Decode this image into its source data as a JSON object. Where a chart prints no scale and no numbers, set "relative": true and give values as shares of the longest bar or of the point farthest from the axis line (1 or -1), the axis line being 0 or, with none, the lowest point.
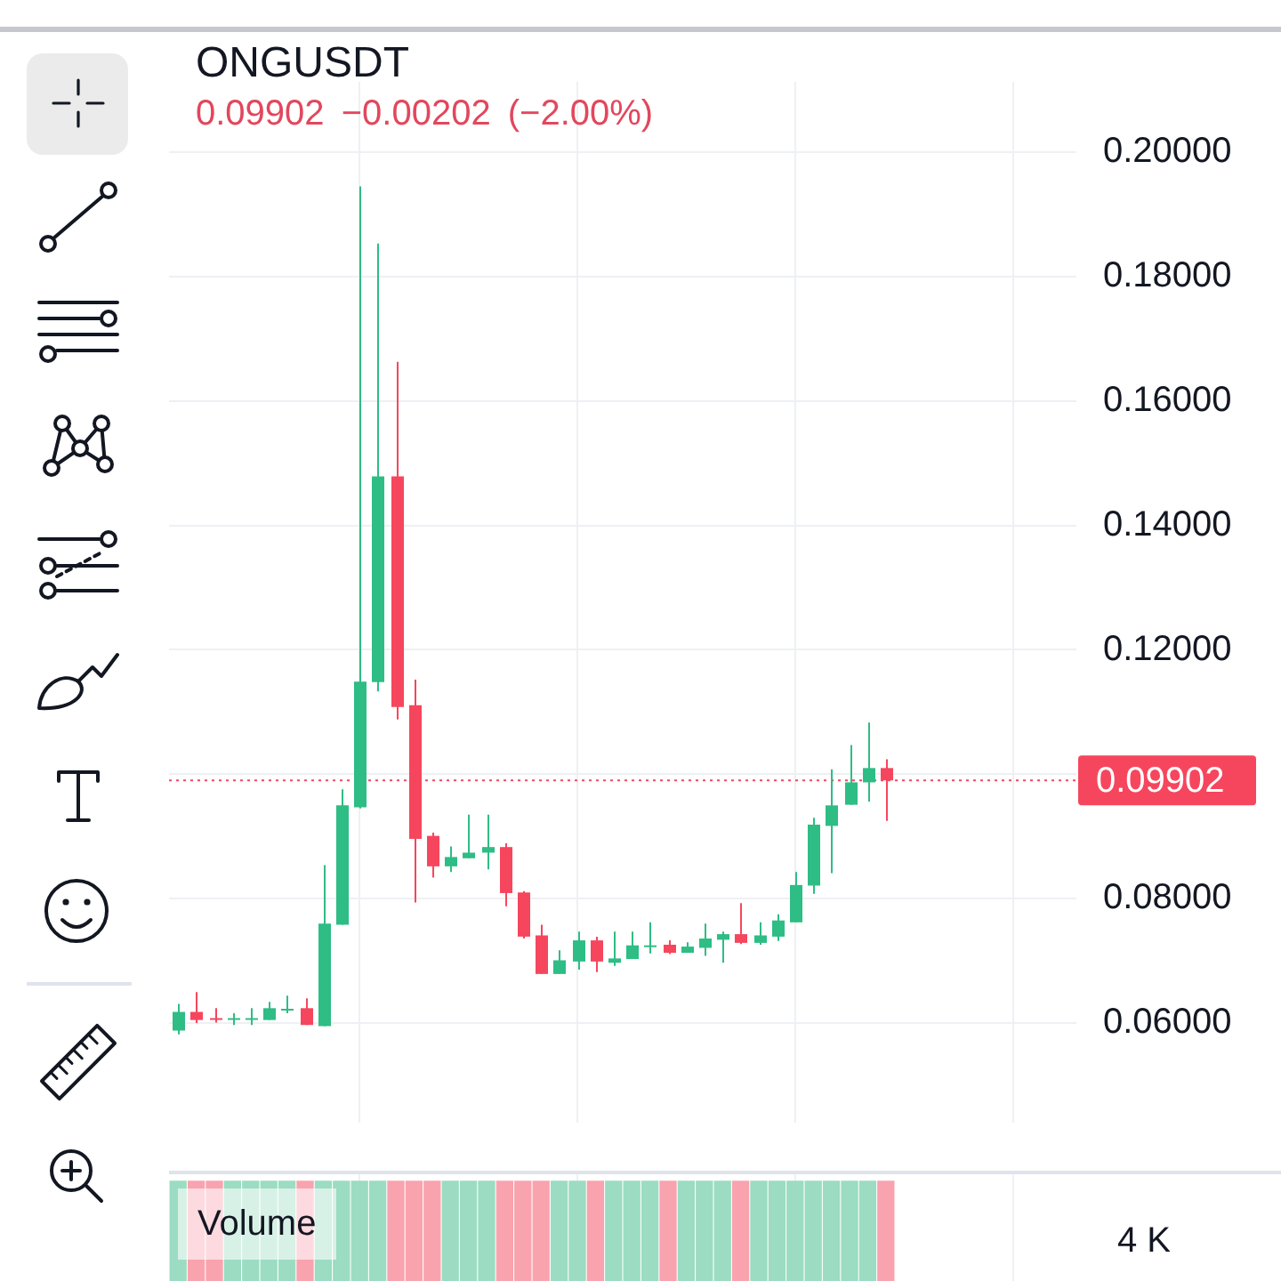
{
  "chart_data": [
    {
      "type": "candlestick",
      "title": "ONGUSDT",
      "subtitle": "0.09902 −0.00202 (−2.00%)",
      "categories": [
        null,
        null,
        null,
        null,
        null,
        null,
        null,
        null,
        null,
        null,
        null,
        null,
        null,
        null,
        null,
        null,
        null,
        null,
        null,
        null,
        null,
        null,
        null,
        null,
        null,
        null,
        null,
        null,
        null,
        null,
        null,
        null,
        null,
        null,
        null,
        null,
        null,
        null,
        null,
        null,
        null,
        null,
        null,
        null,
        null,
        null,
        null,
        null,
        null,
        null
      ],
      "ohlc": [
        [
          0.0588,
          0.0631,
          0.0582,
          0.0618
        ],
        [
          0.0618,
          0.065,
          0.06,
          0.0605
        ],
        [
          0.0608,
          0.0624,
          0.0601,
          0.0607
        ],
        [
          0.0607,
          0.0616,
          0.0597,
          0.0608
        ],
        [
          0.0607,
          0.0624,
          0.0597,
          0.0608
        ],
        [
          0.0605,
          0.0634,
          0.0605,
          0.0624
        ],
        [
          0.0622,
          0.0644,
          0.0616,
          0.0623
        ],
        [
          0.0624,
          0.064,
          0.0597,
          0.0597
        ],
        [
          0.0595,
          0.0854,
          0.0595,
          0.076
        ],
        [
          0.0758,
          0.0976,
          0.0758,
          0.095
        ],
        [
          0.0947,
          0.1945,
          0.0945,
          0.1149
        ],
        [
          0.1148,
          0.1853,
          0.1133,
          0.1479
        ],
        [
          0.1479,
          0.1663,
          0.1088,
          0.1108
        ],
        [
          0.1111,
          0.1152,
          0.0794,
          0.0896
        ],
        [
          0.0901,
          0.0906,
          0.0834,
          0.0852
        ],
        [
          0.0852,
          0.0884,
          0.0843,
          0.0867
        ],
        [
          0.0865,
          0.0935,
          0.0865,
          0.0874
        ],
        [
          0.0874,
          0.0935,
          0.0847,
          0.0883
        ],
        [
          0.0883,
          0.0889,
          0.0788,
          0.0809
        ],
        [
          0.081,
          0.0812,
          0.0736,
          0.0739
        ],
        [
          0.0741,
          0.0758,
          0.0679,
          0.0679
        ],
        [
          0.0679,
          0.0717,
          0.0679,
          0.0701
        ],
        [
          0.0699,
          0.0747,
          0.0686,
          0.0733
        ],
        [
          0.0733,
          0.0739,
          0.0682,
          0.0699
        ],
        [
          0.0697,
          0.0747,
          0.0692,
          0.0704
        ],
        [
          0.0703,
          0.0747,
          0.0703,
          0.0725
        ],
        [
          0.0724,
          0.0762,
          0.0712,
          0.0725
        ],
        [
          0.0726,
          0.0733,
          0.0711,
          0.0713
        ],
        [
          0.0713,
          0.073,
          0.0713,
          0.0723
        ],
        [
          0.0721,
          0.076,
          0.0708,
          0.0736
        ],
        [
          0.0734,
          0.0747,
          0.0697,
          0.0743
        ],
        [
          0.0743,
          0.0793,
          0.0727,
          0.0729
        ],
        [
          0.0729,
          0.0762,
          0.0726,
          0.0741
        ],
        [
          0.0739,
          0.0775,
          0.0732,
          0.0765
        ],
        [
          0.0762,
          0.0843,
          0.0762,
          0.0822
        ],
        [
          0.0821,
          0.093,
          0.0808,
          0.0919
        ],
        [
          0.0917,
          0.1008,
          0.0841,
          0.095
        ],
        [
          0.0951,
          0.1047,
          0.0951,
          0.0987
        ],
        [
          0.0987,
          0.1083,
          0.0956,
          0.101
        ],
        [
          0.101,
          0.1024,
          0.0925,
          0.09902
        ],
        null,
        null,
        null,
        null,
        null,
        null,
        null,
        null,
        null,
        null
      ],
      "colors": [
        "#2ebd85",
        "#f6465d",
        "#f6465d",
        "#2ebd85",
        "#2ebd85",
        "#2ebd85",
        "#2ebd85",
        "#f6465d",
        "#2ebd85",
        "#2ebd85",
        "#2ebd85",
        "#2ebd85",
        "#f6465d",
        "#f6465d",
        "#f6465d",
        "#2ebd85",
        "#2ebd85",
        "#2ebd85",
        "#f6465d",
        "#f6465d",
        "#f6465d",
        "#2ebd85",
        "#2ebd85",
        "#f6465d",
        "#2ebd85",
        "#2ebd85",
        "#2ebd85",
        "#f6465d",
        "#2ebd85",
        "#2ebd85",
        "#2ebd85",
        "#f6465d",
        "#2ebd85",
        "#2ebd85",
        "#2ebd85",
        "#2ebd85",
        "#2ebd85",
        "#2ebd85",
        "#2ebd85",
        "#f6465d",
        null,
        null,
        null,
        null,
        null,
        null,
        null,
        null,
        null,
        null
      ],
      "ylim": [
        0.044,
        0.2113
      ],
      "yticks": [
        {
          "value": 0.06,
          "label": "0.06000"
        },
        {
          "value": 0.08,
          "label": "0.08000"
        },
        {
          "value": 0.1,
          "label": null
        },
        {
          "value": 0.12,
          "label": "0.12000"
        },
        {
          "value": 0.14,
          "label": "0.14000"
        },
        {
          "value": 0.16,
          "label": "0.16000"
        },
        {
          "value": 0.18,
          "label": "0.18000"
        },
        {
          "value": 0.2,
          "label": "0.20000"
        }
      ],
      "grid": true,
      "ref_lines": [
        {
          "axis": "y",
          "value": 0.09902,
          "label": "0.09902",
          "color": "#f6465d",
          "line_style": "dotted"
        }
      ]
    },
    {
      "type": "bar",
      "title": "Volume",
      "categories": [
        null,
        null,
        null,
        null,
        null,
        null,
        null,
        null,
        null,
        null,
        null,
        null,
        null,
        null,
        null,
        null,
        null,
        null,
        null,
        null,
        null,
        null,
        null,
        null,
        null,
        null,
        null,
        null,
        null,
        null,
        null,
        null,
        null,
        null,
        null,
        null,
        null,
        null,
        null,
        null,
        null,
        null,
        null,
        null,
        null,
        null,
        null,
        null,
        null,
        null
      ],
      "values": [
        1,
        1,
        1,
        1,
        1,
        1,
        1,
        1,
        1,
        1,
        1,
        1,
        1,
        1,
        1,
        1,
        1,
        1,
        1,
        1,
        1,
        1,
        1,
        1,
        1,
        1,
        1,
        1,
        1,
        1,
        1,
        1,
        1,
        1,
        1,
        1,
        1,
        1,
        1,
        1,
        null,
        null,
        null,
        null,
        null,
        null,
        null,
        null,
        null,
        null
      ],
      "colors": [
        "#9bdcc2",
        "#f9a3ae",
        "#f9a3ae",
        "#9bdcc2",
        "#9bdcc2",
        "#9bdcc2",
        "#9bdcc2",
        "#f9a3ae",
        "#9bdcc2",
        "#9bdcc2",
        "#9bdcc2",
        "#9bdcc2",
        "#f9a3ae",
        "#f9a3ae",
        "#f9a3ae",
        "#9bdcc2",
        "#9bdcc2",
        "#9bdcc2",
        "#f9a3ae",
        "#f9a3ae",
        "#f9a3ae",
        "#9bdcc2",
        "#9bdcc2",
        "#f9a3ae",
        "#9bdcc2",
        "#9bdcc2",
        "#9bdcc2",
        "#f9a3ae",
        "#9bdcc2",
        "#9bdcc2",
        "#9bdcc2",
        "#f9a3ae",
        "#9bdcc2",
        "#9bdcc2",
        "#9bdcc2",
        "#9bdcc2",
        "#9bdcc2",
        "#9bdcc2",
        "#9bdcc2",
        "#f9a3ae",
        null,
        null,
        null,
        null,
        null,
        null,
        null,
        null,
        null,
        null
      ],
      "relative": true,
      "grid": "x",
      "annotations": [
        "4 K"
      ]
    }
  ]
}
